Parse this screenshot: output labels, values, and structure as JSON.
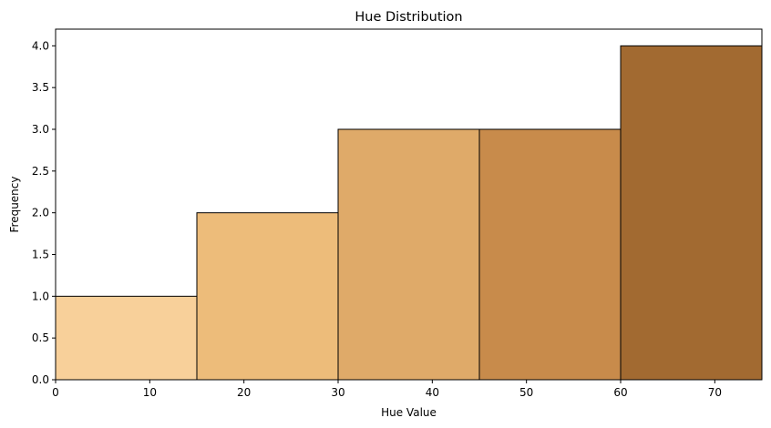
{
  "chart_data": {
    "type": "bar",
    "title": "Hue Distribution",
    "xlabel": "Hue Value",
    "ylabel": "Frequency",
    "bins": [
      {
        "x0": 0,
        "x1": 15,
        "value": 1,
        "color": "#F8D09A"
      },
      {
        "x0": 15,
        "x1": 30,
        "value": 2,
        "color": "#EDBC7A"
      },
      {
        "x0": 30,
        "x1": 45,
        "value": 3,
        "color": "#DFAA69"
      },
      {
        "x0": 45,
        "x1": 60,
        "value": 3,
        "color": "#C88B4B"
      },
      {
        "x0": 60,
        "x1": 75,
        "value": 4,
        "color": "#A26A31"
      }
    ],
    "xlim": [
      0,
      75
    ],
    "ylim": [
      0,
      4.2
    ],
    "xticks": [
      0,
      10,
      20,
      30,
      40,
      50,
      60,
      70
    ],
    "xtick_labels": [
      "0",
      "10",
      "20",
      "30",
      "40",
      "50",
      "60",
      "70"
    ],
    "yticks": [
      0,
      0.5,
      1,
      1.5,
      2,
      2.5,
      3,
      3.5,
      4
    ],
    "ytick_labels": [
      "0.0",
      "0.5",
      "1.0",
      "1.5",
      "2.0",
      "2.5",
      "3.0",
      "3.5",
      "4.0"
    ],
    "grid": false,
    "edge_color": "#000000"
  }
}
